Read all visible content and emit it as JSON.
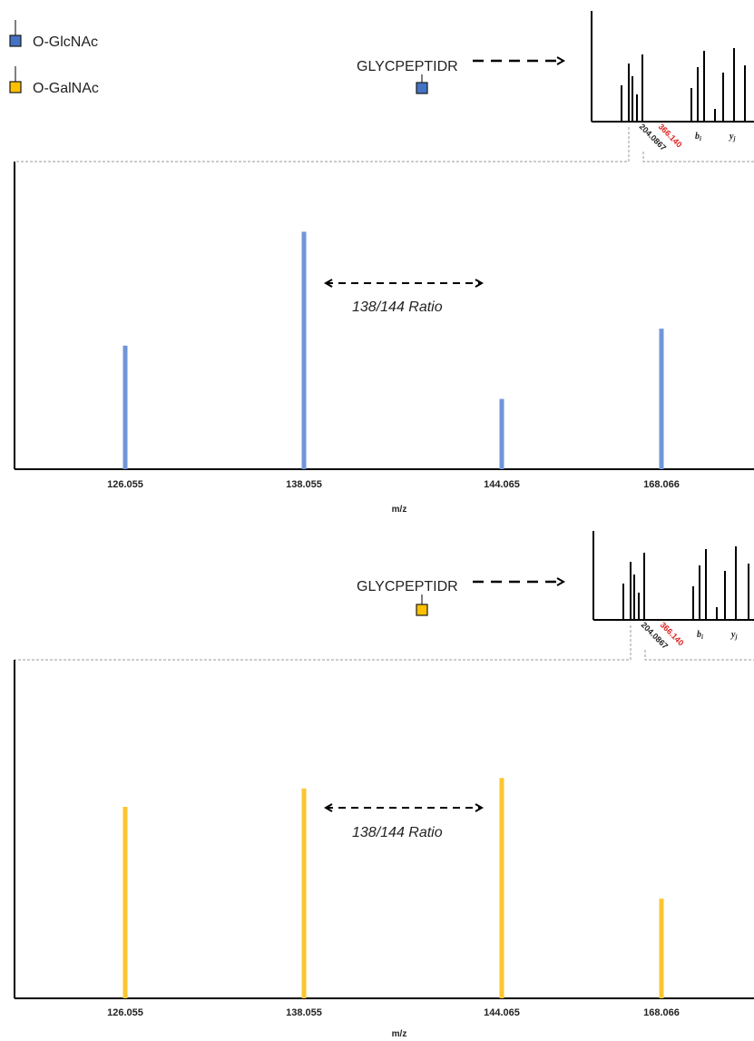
{
  "legend": [
    {
      "label": "O-GlcNAc",
      "color": "#4472c4"
    },
    {
      "label": "O-GalNAc",
      "color": "#ffc000"
    }
  ],
  "panels": [
    {
      "peptide": "GLYCPEPTIDR",
      "glycan_color": "#4472c4",
      "ms2_labels": {
        "mz_red": "366.140",
        "mz_black": "204.0867",
        "b_ion": "b",
        "b_sub": "i",
        "y_ion": "y",
        "y_sub": "j"
      },
      "ratio_label": "138/144 Ratio"
    },
    {
      "peptide": "GLYCPEPTIDR",
      "glycan_color": "#ffc000",
      "ms2_labels": {
        "mz_red": "366.140",
        "mz_black": "204.0867",
        "b_ion": "b",
        "b_sub": "i",
        "y_ion": "y",
        "y_sub": "j"
      },
      "ratio_label": "138/144 Ratio"
    }
  ],
  "colors": {
    "glcnac_bar": "#7096d8",
    "galnac_bar": "#fbc531",
    "ms2_red": "#e02020"
  },
  "chart_data": [
    {
      "type": "bar",
      "title": "",
      "xlabel": "m/z",
      "ylabel": "",
      "categories": [
        "126.055",
        "138.055",
        "144.065",
        "168.066"
      ],
      "x": [
        126.055,
        138.055,
        144.065,
        168.066
      ],
      "values": [
        0.51,
        0.98,
        0.29,
        0.58
      ],
      "ylim": [
        0,
        1
      ],
      "grid": false
    },
    {
      "type": "bar",
      "title": "",
      "xlabel": "m/z",
      "ylabel": "",
      "categories": [
        "126.055",
        "138.055",
        "144.065",
        "168.066"
      ],
      "x": [
        126.055,
        138.055,
        144.065,
        168.066
      ],
      "values": [
        0.73,
        0.8,
        0.84,
        0.38
      ],
      "ylim": [
        0,
        1
      ],
      "grid": false
    }
  ]
}
